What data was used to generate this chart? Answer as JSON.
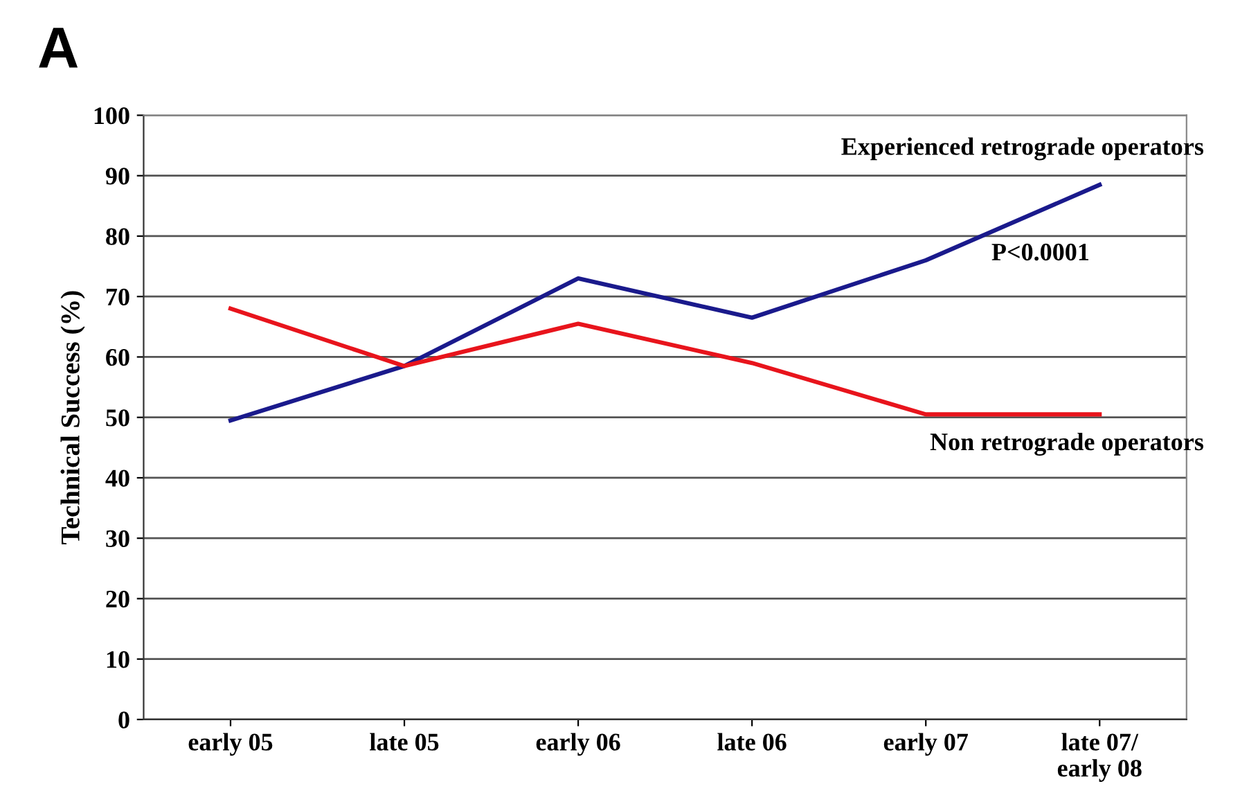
{
  "chart_data": {
    "type": "line",
    "title": "A",
    "ylabel": "Technical Success (%)",
    "categories": [
      "early 05",
      "late 05",
      "early 06",
      "late 06",
      "early 07",
      "late 07/\nearly 08"
    ],
    "series": [
      {
        "name": "Experienced retrograde operators",
        "color": "#1a1a8c",
        "values": [
          49.5,
          58.5,
          73,
          66.5,
          76,
          88.5
        ]
      },
      {
        "name": "Non retrograde operators",
        "color": "#e8141c",
        "values": [
          68,
          58.5,
          65.5,
          59,
          50.5,
          50.5
        ]
      }
    ],
    "annotations": [
      "P<0.0001"
    ],
    "ylim": [
      0,
      100
    ],
    "yticks": [
      0,
      10,
      20,
      30,
      40,
      50,
      60,
      70,
      80,
      90,
      100
    ],
    "grid": "y",
    "marker": "none",
    "line_style": "solid",
    "legend": false
  }
}
